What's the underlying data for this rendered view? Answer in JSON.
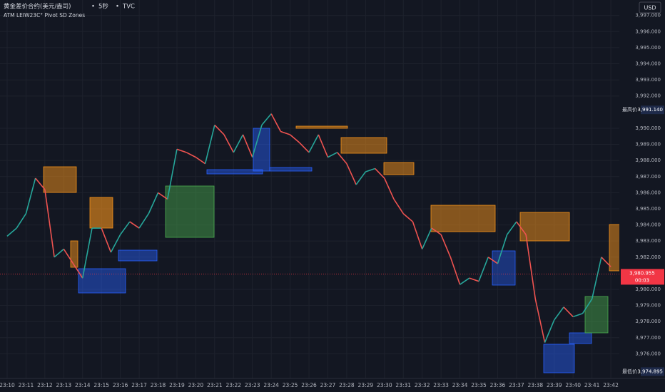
{
  "header": {
    "symbol": "黄金差价合约(美元/盎司)",
    "interval": "5秒",
    "source": "TVC",
    "indicator": "ATM LEIW23C°  Pivot SD Zones",
    "currency": "USD"
  },
  "chart_data": {
    "type": "line",
    "categories": [
      "23:10",
      null,
      "23:11",
      null,
      "23:12",
      null,
      "23:13",
      null,
      "23:14",
      null,
      "23:15",
      null,
      "23:16",
      null,
      "23:17",
      null,
      "23:18",
      null,
      "23:19",
      null,
      "23:20",
      null,
      "23:21",
      null,
      "23:22",
      null,
      "23:23",
      null,
      "23:24",
      null,
      "23:25",
      null,
      "23:26",
      null,
      "23:27",
      null,
      "23:28",
      null,
      "23:29",
      null,
      "23:30",
      null,
      "23:31",
      null,
      "23:32",
      null,
      "23:33",
      null,
      "23:34",
      null,
      "23:35",
      null,
      "23:36",
      null,
      "23:37",
      null,
      "23:38",
      null,
      "23:39",
      null,
      "23:40",
      null,
      "23:41",
      null,
      "23:42"
    ],
    "values": [
      3983.3,
      3983.8,
      3984.7,
      3986.9,
      3986.2,
      3982.0,
      3982.5,
      3981.6,
      3980.7,
      3983.8,
      3983.8,
      3982.3,
      3983.4,
      3984.2,
      3983.8,
      3984.7,
      3986.0,
      3985.6,
      3988.7,
      3988.5,
      3988.2,
      3987.8,
      3990.2,
      3989.6,
      3988.5,
      3989.6,
      3988.2,
      3990.2,
      3990.9,
      3989.8,
      3989.6,
      3989.1,
      3988.5,
      3989.6,
      3988.2,
      3988.5,
      3987.8,
      3986.5,
      3987.3,
      3987.5,
      3986.9,
      3985.6,
      3984.7,
      3984.2,
      3982.5,
      3983.8,
      3983.4,
      3982.0,
      3980.3,
      3980.7,
      3980.5,
      3982.0,
      3981.6,
      3983.4,
      3984.2,
      3983.4,
      3979.4,
      3976.7,
      3978.1,
      3978.9,
      3978.3,
      3978.5,
      3979.4,
      3982.0,
      3981.4
    ],
    "up_color": "#26a69a",
    "down_color": "#ef5350",
    "grid": true,
    "ylim": [
      3974.47,
      3997.96
    ],
    "yticks": [
      {
        "value": 3976,
        "label": "3,976.000"
      },
      {
        "value": 3977,
        "label": "3,977.000"
      },
      {
        "value": 3978,
        "label": "3,978.000"
      },
      {
        "value": 3979,
        "label": "3,979.000"
      },
      {
        "value": 3980,
        "label": "3,980.000"
      },
      {
        "value": 3982,
        "label": "3,982.000"
      },
      {
        "value": 3983,
        "label": "3,983.000"
      },
      {
        "value": 3984,
        "label": "3,984.000"
      },
      {
        "value": 3985,
        "label": "3,985.000"
      },
      {
        "value": 3986,
        "label": "3,986.000"
      },
      {
        "value": 3987,
        "label": "3,987.000"
      },
      {
        "value": 3988,
        "label": "3,988.000"
      },
      {
        "value": 3989,
        "label": "3,989.000"
      },
      {
        "value": 3990,
        "label": "3,990.000"
      },
      {
        "value": 3992,
        "label": "3,992.000"
      },
      {
        "value": 3993,
        "label": "3,993.000"
      },
      {
        "value": 3994,
        "label": "3,994.000"
      },
      {
        "value": 3995,
        "label": "3,995.000"
      },
      {
        "value": 3996,
        "label": "3,996.000"
      },
      {
        "value": 3997,
        "label": "3,997.000"
      }
    ],
    "markers": [
      {
        "label": "最高价",
        "value": 3991.14,
        "value_label": "3,991.140"
      },
      {
        "label": "最低价",
        "value": 3974.895,
        "value_label": "3,974.895"
      }
    ],
    "last": {
      "value": 3980.955,
      "value_label": "3,980.955",
      "countdown": "00:03",
      "color": "#f23645"
    }
  }
}
